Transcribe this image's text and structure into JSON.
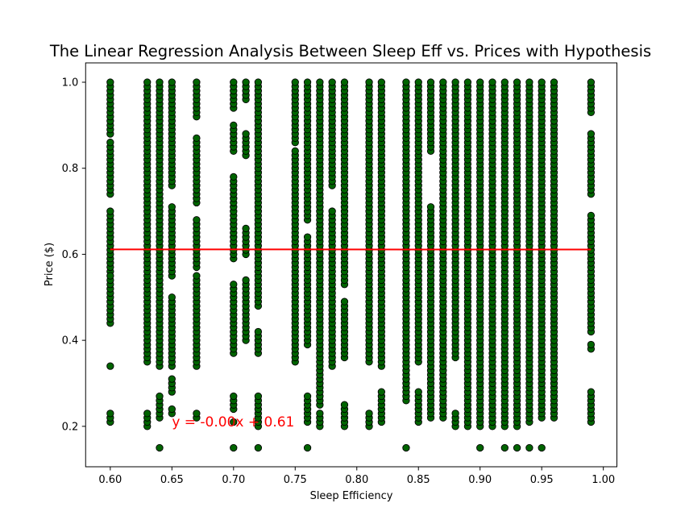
{
  "chart_data": {
    "type": "scatter",
    "title": "The Linear Regression Analysis Between Sleep Eff vs. Prices with Hypothesis",
    "xlabel": "Sleep Efficiency",
    "ylabel": "Price ($)",
    "xlim": [
      0.58,
      1.011
    ],
    "ylim": [
      0.106,
      1.045
    ],
    "xticks": [
      "0.60",
      "0.65",
      "0.70",
      "0.75",
      "0.80",
      "0.85",
      "0.90",
      "0.95",
      "1.00"
    ],
    "xtick_values": [
      0.6,
      0.65,
      0.7,
      0.75,
      0.8,
      0.85,
      0.9,
      0.95,
      1.0
    ],
    "yticks": [
      "0.2",
      "0.4",
      "0.6",
      "0.8",
      "1.0"
    ],
    "ytick_values": [
      0.2,
      0.4,
      0.6,
      0.8,
      1.0
    ],
    "grid": false,
    "marker_color": "#006400",
    "marker_edge": "#000000",
    "line_color": "#ff0000",
    "regression": {
      "slope": -0.001,
      "intercept": 0.612,
      "x_range": [
        0.6,
        0.99
      ]
    },
    "annotation": {
      "text": "y = -0.00x + 0.61",
      "x": 0.65,
      "y": 0.2,
      "color": "#ff0000"
    },
    "scatter_columns": [
      {
        "x": 0.6,
        "bands": [
          [
            0.88,
            1.0
          ],
          [
            0.74,
            0.86
          ],
          [
            0.56,
            0.7
          ],
          [
            0.44,
            0.55
          ],
          [
            0.34,
            0.34
          ],
          [
            0.21,
            0.23
          ]
        ]
      },
      {
        "x": 0.63,
        "bands": [
          [
            0.35,
            1.0
          ],
          [
            0.2,
            0.23
          ]
        ]
      },
      {
        "x": 0.64,
        "bands": [
          [
            0.34,
            1.0
          ],
          [
            0.22,
            0.27
          ],
          [
            0.15,
            0.15
          ]
        ]
      },
      {
        "x": 0.65,
        "bands": [
          [
            0.34,
            0.5
          ],
          [
            0.55,
            0.71
          ],
          [
            0.76,
            1.0
          ],
          [
            0.28,
            0.31
          ],
          [
            0.23,
            0.24
          ]
        ]
      },
      {
        "x": 0.67,
        "bands": [
          [
            0.92,
            1.0
          ],
          [
            0.72,
            0.87
          ],
          [
            0.57,
            0.68
          ],
          [
            0.34,
            0.55
          ],
          [
            0.22,
            0.23
          ]
        ]
      },
      {
        "x": 0.7,
        "bands": [
          [
            0.94,
            1.0
          ],
          [
            0.84,
            0.9
          ],
          [
            0.59,
            0.78
          ],
          [
            0.37,
            0.53
          ],
          [
            0.24,
            0.27
          ],
          [
            0.21,
            0.21
          ],
          [
            0.15,
            0.15
          ]
        ]
      },
      {
        "x": 0.71,
        "bands": [
          [
            0.96,
            1.0
          ],
          [
            0.83,
            0.88
          ],
          [
            0.6,
            0.66
          ],
          [
            0.4,
            0.54
          ]
        ]
      },
      {
        "x": 0.72,
        "bands": [
          [
            0.48,
            1.0
          ],
          [
            0.37,
            0.42
          ],
          [
            0.2,
            0.27
          ],
          [
            0.15,
            0.15
          ]
        ]
      },
      {
        "x": 0.75,
        "bands": [
          [
            0.86,
            1.0
          ],
          [
            0.35,
            0.84
          ]
        ]
      },
      {
        "x": 0.76,
        "bands": [
          [
            0.68,
            1.0
          ],
          [
            0.39,
            0.64
          ],
          [
            0.21,
            0.27
          ],
          [
            0.15,
            0.15
          ]
        ]
      },
      {
        "x": 0.77,
        "bands": [
          [
            0.25,
            1.0
          ],
          [
            0.2,
            0.23
          ]
        ]
      },
      {
        "x": 0.78,
        "bands": [
          [
            0.76,
            1.0
          ],
          [
            0.34,
            0.7
          ]
        ]
      },
      {
        "x": 0.79,
        "bands": [
          [
            0.53,
            1.0
          ],
          [
            0.36,
            0.49
          ],
          [
            0.2,
            0.25
          ]
        ]
      },
      {
        "x": 0.81,
        "bands": [
          [
            0.35,
            1.0
          ],
          [
            0.2,
            0.23
          ]
        ]
      },
      {
        "x": 0.82,
        "bands": [
          [
            0.34,
            1.0
          ],
          [
            0.21,
            0.28
          ]
        ]
      },
      {
        "x": 0.84,
        "bands": [
          [
            0.26,
            1.0
          ],
          [
            0.15,
            0.15
          ]
        ]
      },
      {
        "x": 0.85,
        "bands": [
          [
            0.35,
            1.0
          ],
          [
            0.21,
            0.28
          ]
        ]
      },
      {
        "x": 0.86,
        "bands": [
          [
            0.84,
            1.0
          ],
          [
            0.22,
            0.71
          ]
        ]
      },
      {
        "x": 0.87,
        "bands": [
          [
            0.22,
            1.0
          ]
        ]
      },
      {
        "x": 0.88,
        "bands": [
          [
            0.36,
            1.0
          ],
          [
            0.2,
            0.23
          ]
        ]
      },
      {
        "x": 0.89,
        "bands": [
          [
            0.2,
            1.0
          ]
        ]
      },
      {
        "x": 0.9,
        "bands": [
          [
            0.2,
            1.0
          ],
          [
            0.15,
            0.15
          ]
        ]
      },
      {
        "x": 0.91,
        "bands": [
          [
            0.2,
            1.0
          ]
        ]
      },
      {
        "x": 0.92,
        "bands": [
          [
            0.2,
            1.0
          ],
          [
            0.15,
            0.15
          ]
        ]
      },
      {
        "x": 0.93,
        "bands": [
          [
            0.2,
            1.0
          ],
          [
            0.15,
            0.15
          ]
        ]
      },
      {
        "x": 0.94,
        "bands": [
          [
            0.21,
            1.0
          ],
          [
            0.15,
            0.15
          ]
        ]
      },
      {
        "x": 0.95,
        "bands": [
          [
            0.22,
            1.0
          ],
          [
            0.15,
            0.15
          ]
        ]
      },
      {
        "x": 0.96,
        "bands": [
          [
            0.22,
            1.0
          ]
        ]
      },
      {
        "x": 0.99,
        "bands": [
          [
            0.93,
            1.0
          ],
          [
            0.74,
            0.88
          ],
          [
            0.42,
            0.69
          ],
          [
            0.38,
            0.39
          ],
          [
            0.21,
            0.28
          ]
        ]
      }
    ]
  }
}
